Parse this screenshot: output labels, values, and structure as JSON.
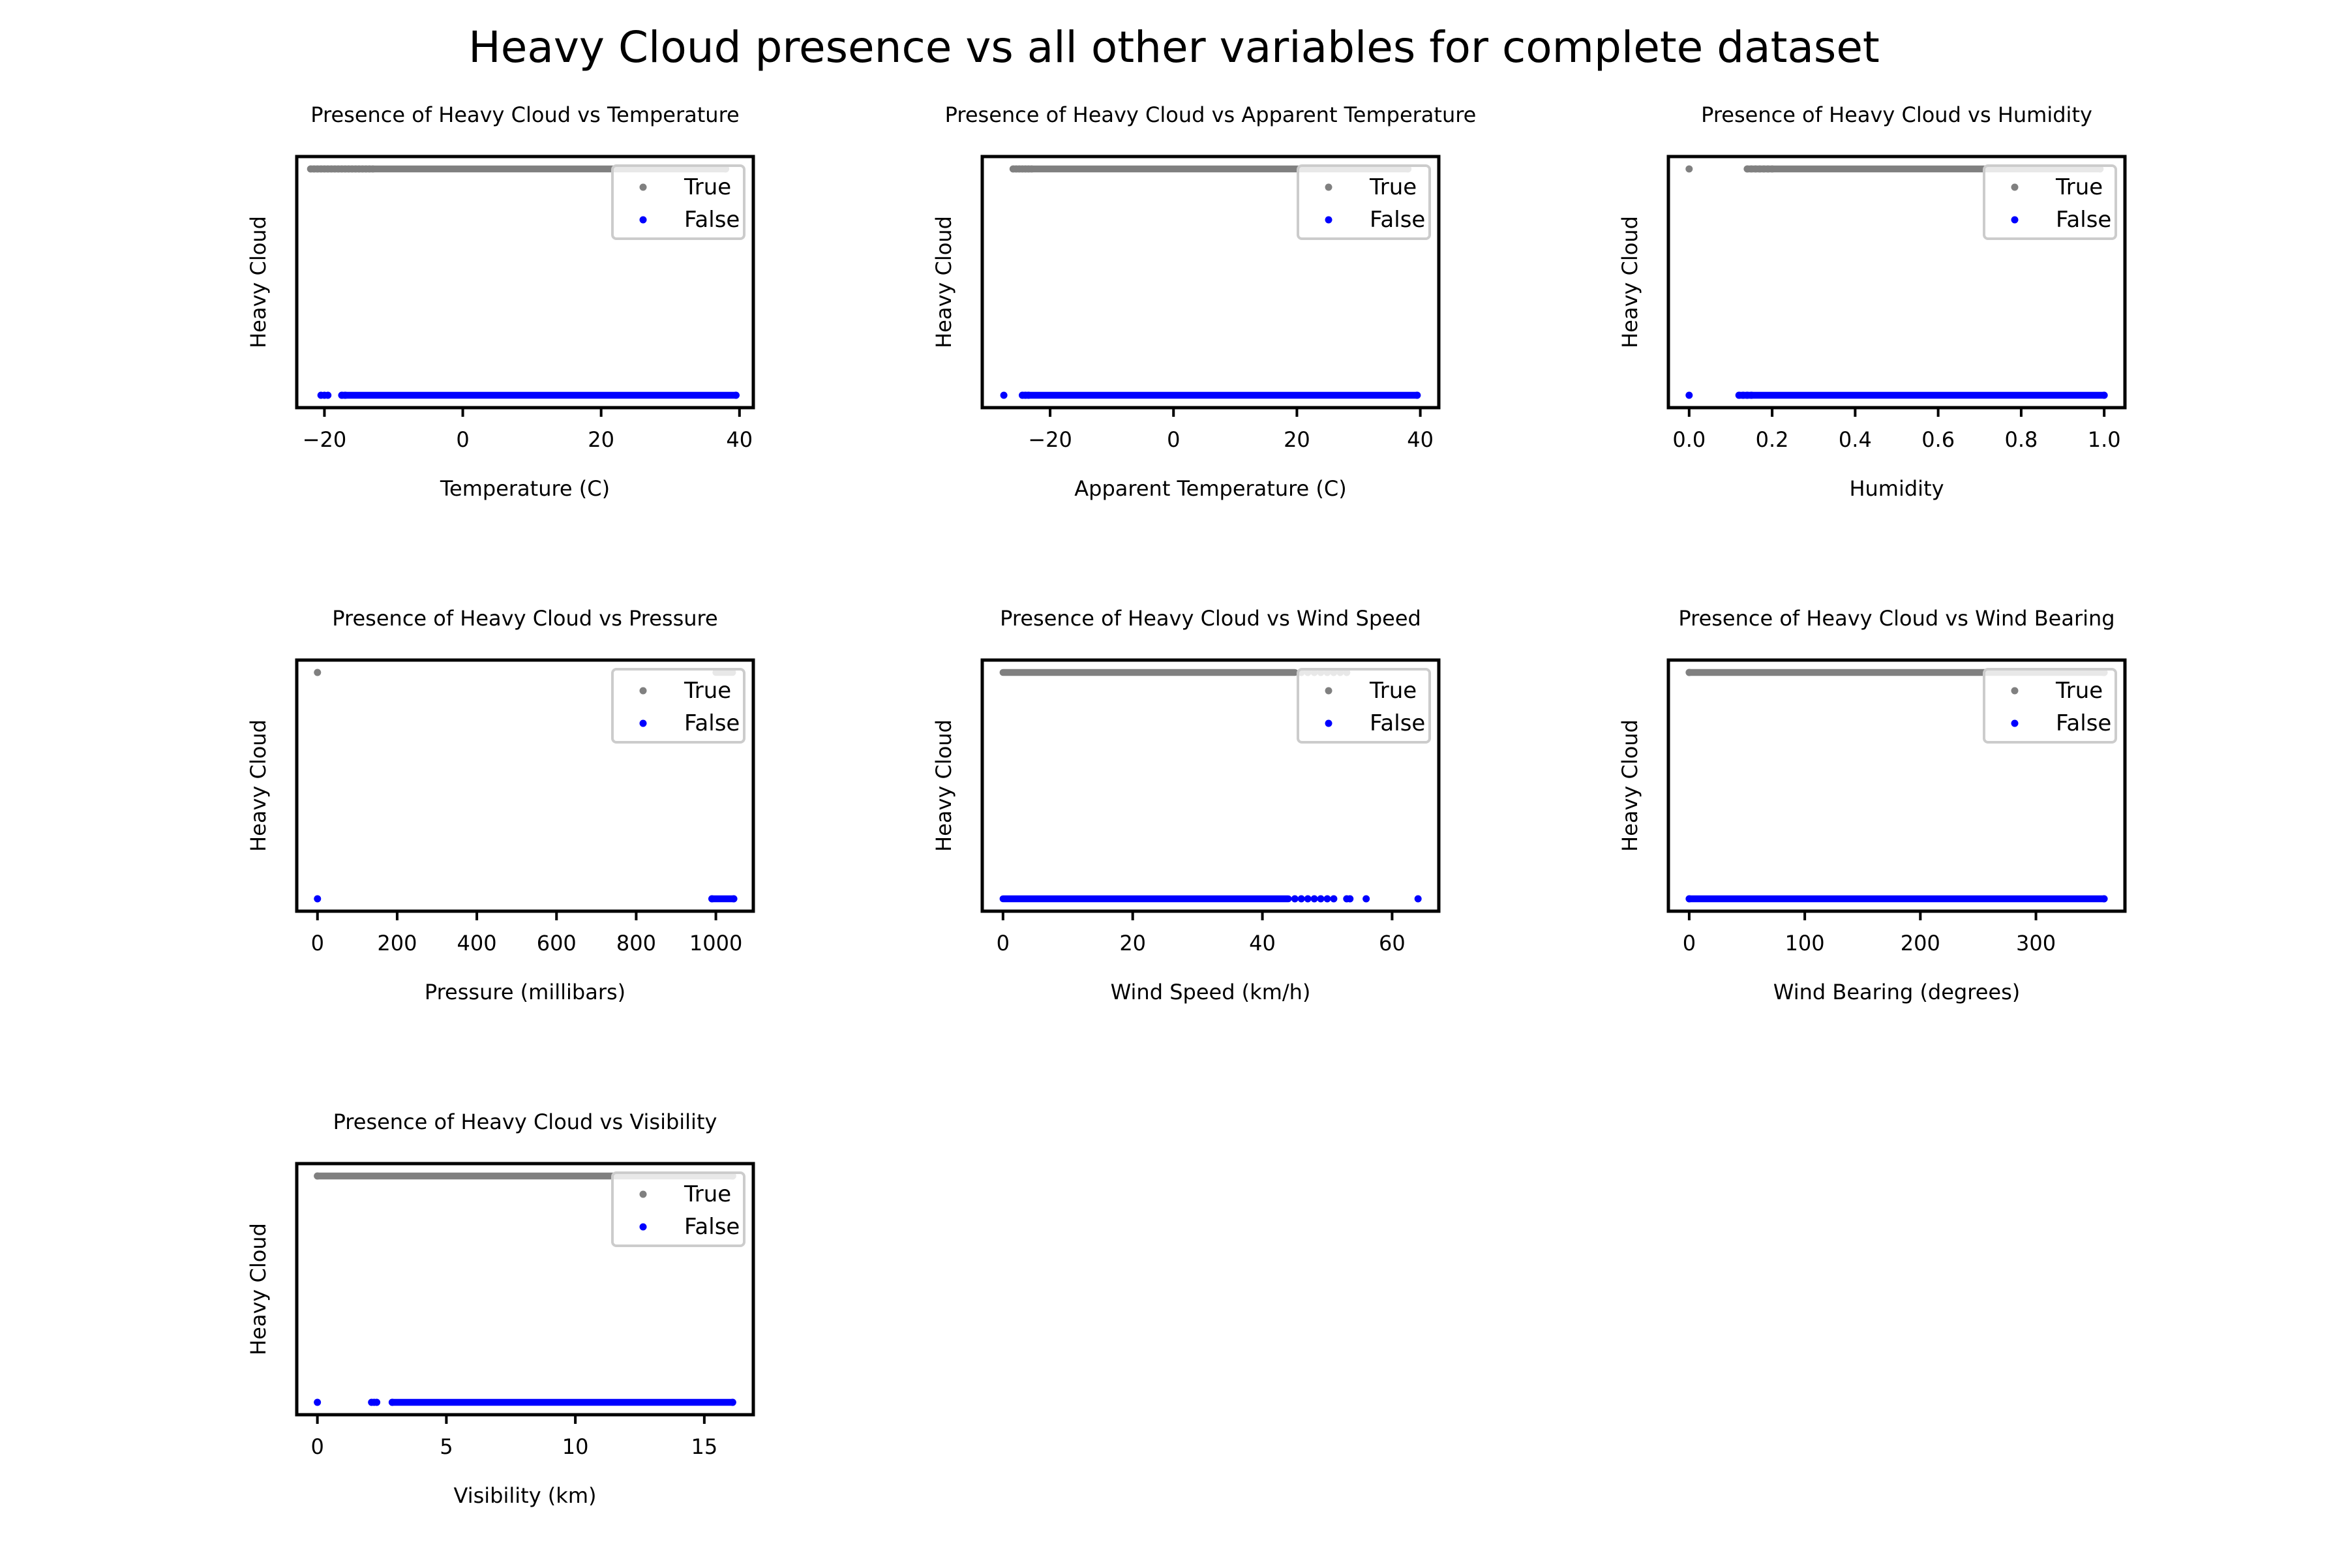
{
  "figure": {
    "suptitle": "Heavy Cloud presence vs all other variables for complete dataset"
  },
  "chart_data": [
    {
      "type": "scatter",
      "title": "Presence of Heavy Cloud vs Temperature",
      "xlabel": "Temperature (C)",
      "ylabel": "Heavy Cloud",
      "xlim": [
        -24,
        42
      ],
      "xticks": [
        -20,
        0,
        20,
        40
      ],
      "xtick_labels": [
        "−20",
        "0",
        "20",
        "40"
      ],
      "y_categories": [
        "False",
        "True"
      ],
      "legend": {
        "placement": "top-right",
        "entries": [
          "True",
          "False"
        ]
      },
      "series": [
        {
          "name": "True",
          "y": "True",
          "color": "#808080",
          "ranges": [
            [
              -22,
              38
            ]
          ],
          "points": [
            -22,
            -21.5,
            -21,
            -20.5,
            -20,
            -19.5,
            -19,
            -18.5,
            -18,
            -17.5,
            -17,
            -16.5,
            -16,
            -15.5,
            -15,
            -14.5,
            -14,
            -13.5,
            -13,
            38
          ]
        },
        {
          "name": "False",
          "y": "False",
          "color": "#0000ff",
          "ranges": [
            [
              -17.5,
              39.5
            ]
          ],
          "points": [
            -20.5,
            -20,
            -19.5,
            -17.5,
            -17,
            39.5
          ]
        }
      ]
    },
    {
      "type": "scatter",
      "title": "Presence of Heavy Cloud vs Apparent Temperature",
      "xlabel": "Apparent Temperature (C)",
      "ylabel": "Heavy Cloud",
      "xlim": [
        -31,
        43
      ],
      "xticks": [
        -20,
        0,
        20,
        40
      ],
      "xtick_labels": [
        "−20",
        "0",
        "20",
        "40"
      ],
      "y_categories": [
        "False",
        "True"
      ],
      "legend": {
        "placement": "top-right",
        "entries": [
          "True",
          "False"
        ]
      },
      "series": [
        {
          "name": "True",
          "y": "True",
          "color": "#808080",
          "ranges": [
            [
              -26,
              38
            ]
          ],
          "points": [
            -26,
            -25.5,
            -25,
            -24.5,
            -24,
            -23.5,
            -23,
            38
          ]
        },
        {
          "name": "False",
          "y": "False",
          "color": "#0000ff",
          "ranges": [
            [
              -24.5,
              39.5
            ]
          ],
          "points": [
            -27.5,
            -24.5,
            -24,
            -23.5,
            39.5
          ]
        }
      ]
    },
    {
      "type": "scatter",
      "title": "Presence of Heavy Cloud vs Humidity",
      "xlabel": "Humidity",
      "ylabel": "Heavy Cloud",
      "xlim": [
        -0.05,
        1.05
      ],
      "xticks": [
        0.0,
        0.2,
        0.4,
        0.6,
        0.8,
        1.0
      ],
      "xtick_labels": [
        "0.0",
        "0.2",
        "0.4",
        "0.6",
        "0.8",
        "1.0"
      ],
      "y_categories": [
        "False",
        "True"
      ],
      "legend": {
        "placement": "top-right",
        "entries": [
          "True",
          "False"
        ]
      },
      "series": [
        {
          "name": "True",
          "y": "True",
          "color": "#808080",
          "ranges": [
            [
              0.14,
              0.99
            ]
          ],
          "points": [
            0.0,
            0.14,
            0.15,
            0.16,
            0.17,
            0.18,
            0.19,
            0.2,
            0.99
          ]
        },
        {
          "name": "False",
          "y": "False",
          "color": "#0000ff",
          "ranges": [
            [
              0.12,
              1.0
            ]
          ],
          "points": [
            0.0,
            0.12,
            0.13,
            0.14,
            0.15,
            1.0
          ]
        }
      ]
    },
    {
      "type": "scatter",
      "title": "Presence of Heavy Cloud vs Pressure",
      "xlabel": "Pressure (millibars)",
      "ylabel": "Heavy Cloud",
      "xlim": [
        -52,
        1094
      ],
      "xticks": [
        0,
        200,
        400,
        600,
        800,
        1000
      ],
      "xtick_labels": [
        "0",
        "200",
        "400",
        "600",
        "800",
        "1000"
      ],
      "y_categories": [
        "False",
        "True"
      ],
      "legend": {
        "placement": "top-right",
        "entries": [
          "True",
          "False"
        ]
      },
      "series": [
        {
          "name": "True",
          "y": "True",
          "color": "#808080",
          "ranges": [
            [
              1000,
              1042
            ]
          ],
          "points": [
            0
          ]
        },
        {
          "name": "False",
          "y": "False",
          "color": "#0000ff",
          "ranges": [
            [
              990,
              1045
            ]
          ],
          "points": [
            0,
            990,
            1045
          ]
        }
      ]
    },
    {
      "type": "scatter",
      "title": "Presence of Heavy Cloud vs Wind Speed",
      "xlabel": "Wind Speed (km/h)",
      "ylabel": "Heavy Cloud",
      "xlim": [
        -3.2,
        67.2
      ],
      "xticks": [
        0,
        20,
        40,
        60
      ],
      "xtick_labels": [
        "0",
        "20",
        "40",
        "60"
      ],
      "y_categories": [
        "False",
        "True"
      ],
      "legend": {
        "placement": "top-right",
        "entries": [
          "True",
          "False"
        ]
      },
      "series": [
        {
          "name": "True",
          "y": "True",
          "color": "#808080",
          "ranges": [
            [
              0,
              45
            ]
          ],
          "points": [
            46,
            47,
            48,
            49,
            50,
            51,
            52,
            53
          ]
        },
        {
          "name": "False",
          "y": "False",
          "color": "#0000ff",
          "ranges": [
            [
              0,
              44
            ]
          ],
          "points": [
            45,
            46,
            47,
            48,
            49,
            50,
            51,
            53,
            53.5,
            56,
            64
          ]
        }
      ]
    },
    {
      "type": "scatter",
      "title": "Presence of Heavy Cloud vs Wind Bearing",
      "xlabel": "Wind Bearing (degrees)",
      "ylabel": "Heavy Cloud",
      "xlim": [
        -18,
        377
      ],
      "xticks": [
        0,
        100,
        200,
        300
      ],
      "xtick_labels": [
        "0",
        "100",
        "200",
        "300"
      ],
      "y_categories": [
        "False",
        "True"
      ],
      "legend": {
        "placement": "top-right",
        "entries": [
          "True",
          "False"
        ]
      },
      "series": [
        {
          "name": "True",
          "y": "True",
          "color": "#808080",
          "ranges": [
            [
              0,
              359
            ]
          ],
          "points": [
            0,
            359
          ]
        },
        {
          "name": "False",
          "y": "False",
          "color": "#0000ff",
          "ranges": [
            [
              0,
              359
            ]
          ],
          "points": [
            0,
            359
          ]
        }
      ]
    },
    {
      "type": "scatter",
      "title": "Presence of Heavy Cloud vs Visibility",
      "xlabel": "Visibility (km)",
      "ylabel": "Heavy Cloud",
      "xlim": [
        -0.8,
        16.9
      ],
      "xticks": [
        0,
        5,
        10,
        15
      ],
      "xtick_labels": [
        "0",
        "5",
        "10",
        "15"
      ],
      "y_categories": [
        "False",
        "True"
      ],
      "legend": {
        "placement": "top-right",
        "entries": [
          "True",
          "False"
        ]
      },
      "series": [
        {
          "name": "True",
          "y": "True",
          "color": "#808080",
          "ranges": [
            [
              0,
              16.1
            ]
          ],
          "points": [
            0,
            16.1
          ]
        },
        {
          "name": "False",
          "y": "False",
          "color": "#0000ff",
          "ranges": [
            [
              2.9,
              16.1
            ]
          ],
          "points": [
            0,
            2.1,
            2.2,
            2.3,
            2.9,
            16.1
          ]
        }
      ]
    }
  ]
}
